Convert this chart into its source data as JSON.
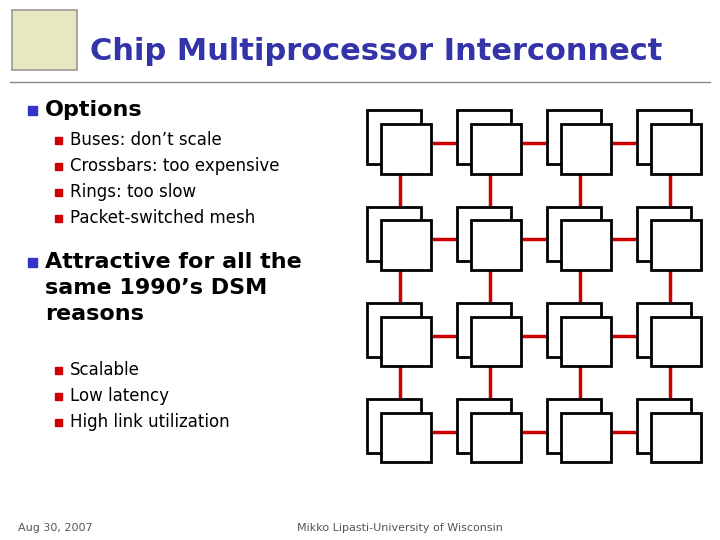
{
  "title": "Chip Multiprocessor Interconnect",
  "title_color": "#3333aa",
  "title_fontsize": 22,
  "bg_color": "#ffffff",
  "bullet1_text": "Options",
  "sub_bullets1": [
    "Buses: don’t scale",
    "Crossbars: too expensive",
    "Rings: too slow",
    "Packet-switched mesh"
  ],
  "bullet2_text_lines": [
    "Attractive for all the",
    "same 1990’s DSM",
    "reasons"
  ],
  "sub_bullets2": [
    "Scalable",
    "Low latency",
    "High link utilization"
  ],
  "bullet_blue_color": "#3333cc",
  "sub_bullet_color": "#cc0000",
  "footer_left": "Aug 30, 2007",
  "footer_right": "Mikko Lipasti-University of Wisconsin",
  "footer_color": "#555555",
  "footer_fontsize": 8,
  "options_fontsize": 16,
  "sub_text_fontsize": 12,
  "bullet2_fontsize": 16,
  "grid_rows": 4,
  "grid_cols": 4,
  "link_color": "#cc0000",
  "node_edge_color": "#000000",
  "separator_color": "#888888",
  "img_bg": "#e8e8c0",
  "img_border": "#999999"
}
